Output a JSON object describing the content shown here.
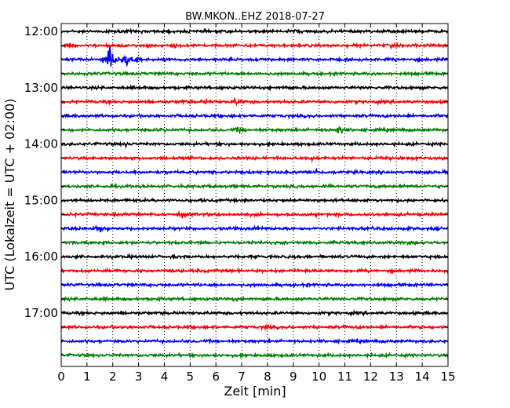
{
  "chart_data": {
    "type": "line",
    "title": "BW.MKON..EHZ 2018-07-27",
    "xlabel": "Zeit  [min]",
    "ylabel": "UTC (Lokalzeit = UTC + 02:00)",
    "xlim": [
      0,
      15
    ],
    "x_ticks": [
      0,
      1,
      2,
      3,
      4,
      5,
      6,
      7,
      8,
      9,
      10,
      11,
      12,
      13,
      14,
      15
    ],
    "y_tick_labels": [
      "12:00",
      "13:00",
      "14:00",
      "15:00",
      "16:00",
      "17:00"
    ],
    "grid": "vertical-dotted",
    "trace_interval_min": 15,
    "trace_colors": [
      "#000000",
      "#ff0000",
      "#0000ff",
      "#008000"
    ],
    "traces": [
      {
        "start": "12:00",
        "color": "#000000",
        "events": [
          {
            "t": 9.1,
            "amp": 0.3
          }
        ]
      },
      {
        "start": "12:15",
        "color": "#ff0000",
        "events": [
          {
            "t": 0.4,
            "amp": 0.35
          },
          {
            "t": 4.4,
            "amp": 0.25
          },
          {
            "t": 12.8,
            "amp": 0.25
          }
        ]
      },
      {
        "start": "12:30",
        "color": "#0000ff",
        "events": [
          {
            "t": 1.9,
            "amp": 5.5
          },
          {
            "t": 2.5,
            "amp": 2.2
          },
          {
            "t": 2.9,
            "amp": 0.9
          }
        ]
      },
      {
        "start": "12:45",
        "color": "#008000",
        "events": []
      },
      {
        "start": "13:00",
        "color": "#000000",
        "events": [
          {
            "t": 8.7,
            "amp": 0.3
          }
        ]
      },
      {
        "start": "13:15",
        "color": "#ff0000",
        "events": [
          {
            "t": 4.7,
            "amp": 0.3
          },
          {
            "t": 5.6,
            "amp": 0.3
          },
          {
            "t": 6.8,
            "amp": 0.55
          }
        ]
      },
      {
        "start": "13:30",
        "color": "#0000ff",
        "events": []
      },
      {
        "start": "13:45",
        "color": "#008000",
        "events": [
          {
            "t": 3.9,
            "amp": 0.35
          },
          {
            "t": 6.9,
            "amp": 0.5
          },
          {
            "t": 10.8,
            "amp": 1.0
          }
        ]
      },
      {
        "start": "14:00",
        "color": "#000000",
        "events": [
          {
            "t": 2.5,
            "amp": 0.25
          }
        ]
      },
      {
        "start": "14:15",
        "color": "#ff0000",
        "events": [
          {
            "t": 9.7,
            "amp": 0.35
          }
        ]
      },
      {
        "start": "14:30",
        "color": "#0000ff",
        "events": [
          {
            "t": 9.9,
            "amp": 0.5
          }
        ]
      },
      {
        "start": "14:45",
        "color": "#008000",
        "events": []
      },
      {
        "start": "15:00",
        "color": "#000000",
        "events": []
      },
      {
        "start": "15:15",
        "color": "#ff0000",
        "events": [
          {
            "t": 4.7,
            "amp": 0.5
          }
        ]
      },
      {
        "start": "15:30",
        "color": "#0000ff",
        "events": [
          {
            "t": 1.5,
            "amp": 1.1
          },
          {
            "t": 7.5,
            "amp": 0.3
          }
        ]
      },
      {
        "start": "15:45",
        "color": "#008000",
        "events": [
          {
            "t": 7.3,
            "amp": 0.25
          },
          {
            "t": 13.7,
            "amp": 0.25
          }
        ]
      },
      {
        "start": "16:00",
        "color": "#000000",
        "events": []
      },
      {
        "start": "16:15",
        "color": "#ff0000",
        "events": [
          {
            "t": 9.5,
            "amp": 0.3
          }
        ]
      },
      {
        "start": "16:30",
        "color": "#0000ff",
        "events": []
      },
      {
        "start": "16:45",
        "color": "#008000",
        "events": [
          {
            "t": 6.7,
            "amp": 0.3
          }
        ]
      },
      {
        "start": "17:00",
        "color": "#000000",
        "events": []
      },
      {
        "start": "17:15",
        "color": "#ff0000",
        "events": [
          {
            "t": 8.0,
            "amp": 0.25
          }
        ]
      },
      {
        "start": "17:30",
        "color": "#0000ff",
        "events": []
      },
      {
        "start": "17:45",
        "color": "#008000",
        "events": []
      }
    ]
  }
}
